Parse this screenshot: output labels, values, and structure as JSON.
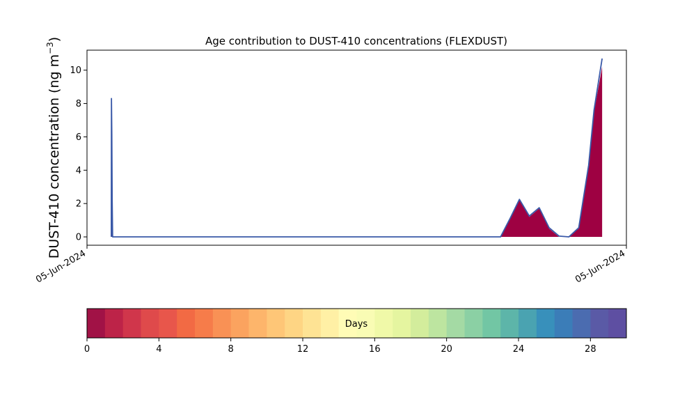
{
  "chart_data": {
    "type": "area",
    "title": "Age contribution to DUST-410 concentrations (FLEXDUST)",
    "ylabel_main": "DUST-410 concentration (ng m",
    "ylabel_sup": "−3",
    "ylabel_tail": ")",
    "xlabel": "",
    "x_tick_labels": [
      "05-Jun-2024",
      "05-Jun-2024"
    ],
    "x_range": [
      0,
      60
    ],
    "ylim": [
      -0.5,
      11.2
    ],
    "y_ticks": [
      0,
      2,
      4,
      6,
      8,
      10
    ],
    "series": [
      {
        "color": "#9e0142",
        "x": [
          2.7,
          2.72,
          2.76,
          2.8,
          2.85,
          46,
          47.1,
          48.1,
          49.2,
          50.3,
          51.4,
          52.5,
          53.6,
          54.7,
          55.8,
          56.4,
          57.3
        ],
        "values": [
          0,
          4.8,
          4.8,
          1.1,
          0,
          0,
          1.1,
          2.2,
          1.2,
          1.7,
          0.5,
          0.0,
          0.0,
          0.5,
          4.2,
          7.5,
          10.2
        ]
      }
    ],
    "total_line": {
      "color": "#3a59a8",
      "x": [
        2.7,
        2.72,
        2.76,
        2.8,
        2.85,
        46,
        47.1,
        48.1,
        49.2,
        50.3,
        51.4,
        52.5,
        53.6,
        54.7,
        55.8,
        56.4,
        57.3
      ],
      "values": [
        0,
        8.3,
        6.2,
        2.2,
        0,
        0,
        1.15,
        2.25,
        1.25,
        1.75,
        0.55,
        0.05,
        0.0,
        0.55,
        4.3,
        7.6,
        10.7
      ]
    },
    "colorbar": {
      "label": "Days",
      "min": 0,
      "max": 30,
      "tick_values": [
        0,
        4,
        8,
        12,
        16,
        20,
        24,
        28
      ],
      "tick_labels": [
        "0",
        "4",
        "8",
        "12",
        "16",
        "20",
        "24",
        "28"
      ],
      "colors": [
        "#a11246",
        "#bd2348",
        "#d0364b",
        "#df4a4b",
        "#e8564b",
        "#f26a44",
        "#f67c4a",
        "#f99155",
        "#fba35f",
        "#fdb56b",
        "#fec677",
        "#fed584",
        "#fee394",
        "#fff0a5",
        "#fffcb6",
        "#f9fcb4",
        "#f0f9a8",
        "#e5f5a0",
        "#d3ed9c",
        "#bde5a0",
        "#a4daa4",
        "#8bd0a4",
        "#72c6a4",
        "#5db5a9",
        "#4aa3b1",
        "#3890bb",
        "#3b7db8",
        "#4b6cb0",
        "#5a5aa6",
        "#5e4fa2"
      ]
    }
  }
}
